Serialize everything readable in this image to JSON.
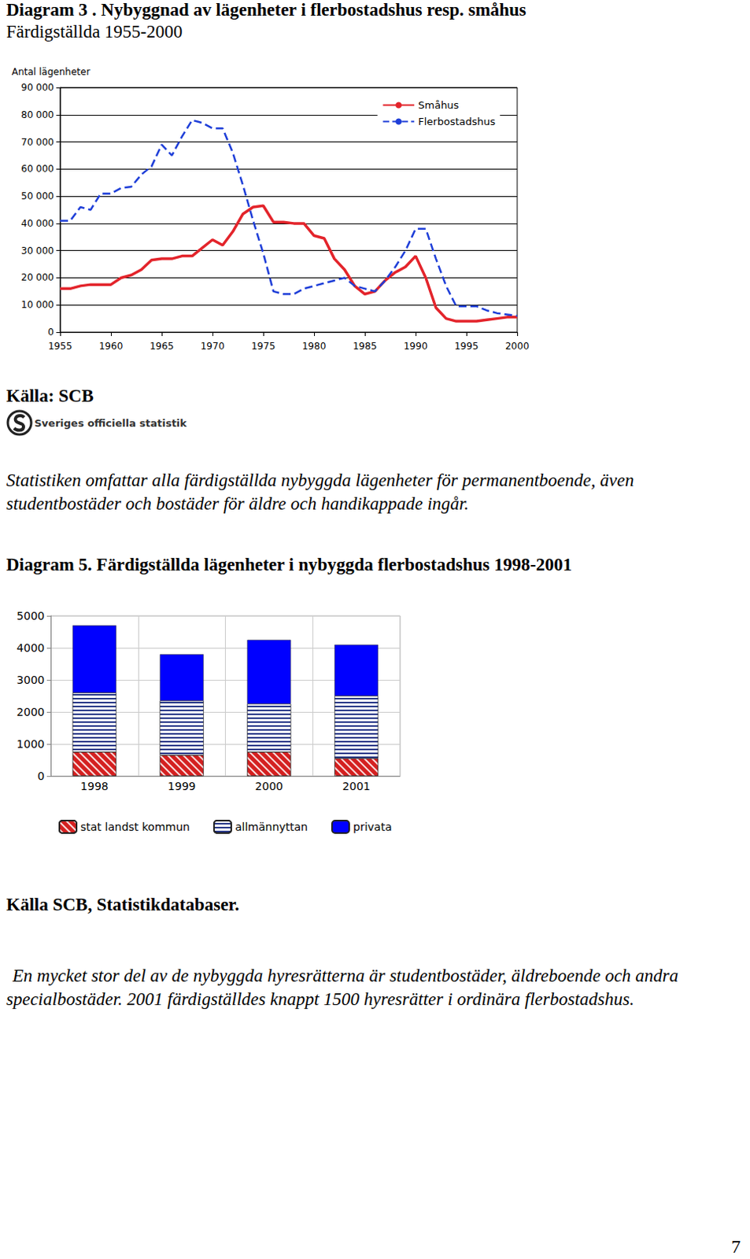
{
  "chart_data": [
    {
      "type": "line",
      "title": "Diagram 3 . Nybyggnad av lägenheter i flerbostadshus resp. småhus",
      "subtitle": "Färdigställda 1955-2000",
      "y_label": "Antal lägenheter",
      "x": [
        1955,
        1956,
        1957,
        1958,
        1959,
        1960,
        1961,
        1962,
        1963,
        1964,
        1965,
        1966,
        1967,
        1968,
        1969,
        1970,
        1971,
        1972,
        1973,
        1974,
        1975,
        1976,
        1977,
        1978,
        1979,
        1980,
        1981,
        1982,
        1983,
        1984,
        1985,
        1986,
        1987,
        1988,
        1989,
        1990,
        1991,
        1992,
        1993,
        1994,
        1995,
        1996,
        1997,
        1998,
        1999,
        2000
      ],
      "series": [
        {
          "name": "Småhus",
          "color": "#e3242b",
          "line_style": "solid",
          "values": [
            16000,
            16000,
            17000,
            17500,
            17500,
            17500,
            20000,
            21000,
            23000,
            26500,
            27000,
            27000,
            28000,
            28000,
            31000,
            34000,
            32000,
            37000,
            43500,
            46000,
            46500,
            40500,
            40500,
            40000,
            40000,
            35500,
            34500,
            27000,
            23000,
            17000,
            14000,
            15000,
            19000,
            22000,
            24000,
            28000,
            20000,
            9000,
            5000,
            4000,
            4000,
            4000,
            4500,
            5000,
            5500,
            5500
          ]
        },
        {
          "name": "Flerbostadshus",
          "color": "#1f3fd8",
          "line_style": "dashed",
          "values": [
            41000,
            41000,
            46000,
            45000,
            51000,
            51000,
            53000,
            53500,
            58000,
            61000,
            69000,
            65000,
            72000,
            78000,
            77000,
            75000,
            75000,
            66000,
            54000,
            41000,
            29000,
            15000,
            14000,
            14000,
            16000,
            17000,
            18000,
            19000,
            20000,
            17000,
            16000,
            15000,
            19000,
            24000,
            30000,
            38000,
            38000,
            27000,
            17000,
            9500,
            9500,
            9500,
            8000,
            7000,
            6500,
            6000
          ]
        }
      ],
      "xlim": [
        1955,
        2000
      ],
      "xticks": [
        1955,
        1960,
        1965,
        1970,
        1975,
        1980,
        1985,
        1990,
        1995,
        2000
      ],
      "ylim": [
        0,
        90000
      ],
      "yticks": [
        0,
        {
          "value": 10000,
          "label": "10 000"
        },
        {
          "value": 20000,
          "label": "20 000"
        },
        {
          "value": 30000,
          "label": "30 000"
        },
        {
          "value": 40000,
          "label": "40 000"
        },
        {
          "value": 50000,
          "label": "50 000"
        },
        {
          "value": 60000,
          "label": "60 000"
        },
        {
          "value": 70000,
          "label": "70 000"
        },
        {
          "value": 80000,
          "label": "80 000"
        },
        {
          "value": 90000,
          "label": "90 000"
        }
      ],
      "grid": true,
      "legend": "top-right"
    },
    {
      "type": "bar",
      "title": "Diagram 5. Färdigställda lägenheter i nybyggda flerbostadshus 1998-2001",
      "categories": [
        "1998",
        "1999",
        "2000",
        "2001"
      ],
      "series": [
        {
          "name": "stat landst kommun",
          "color": "#d42020",
          "values": [
            750,
            650,
            750,
            550
          ]
        },
        {
          "name": "allmännyttan",
          "color": "#2a3a8a",
          "values": [
            1850,
            1700,
            1500,
            1950
          ]
        },
        {
          "name": "privata",
          "color": "#0000ff",
          "values": [
            2100,
            1450,
            2000,
            1600
          ]
        }
      ],
      "stacked": true,
      "ylim": [
        0,
        5000
      ],
      "yticks": [
        0,
        1000,
        2000,
        3000,
        4000,
        5000
      ],
      "grid": true,
      "legend": "bottom"
    }
  ],
  "source_1": "Källa: SCB",
  "logo_text": "Sveriges officiella statistik",
  "note_1": "Statistiken omfattar alla färdigställda nybyggda lägenheter för permanentboende, även studentbostäder och bostäder för äldre och handikappade ingår.",
  "source_2": "Källa SCB, Statistikdatabaser.",
  "note_2": "En mycket stor del av de nybyggda hyresrätterna är studentbostäder, äldreboende och andra specialbostäder. 2001 färdigställdes knappt 1500 hyresrätter i ordinära flerbostadshus.",
  "page_number": "7"
}
